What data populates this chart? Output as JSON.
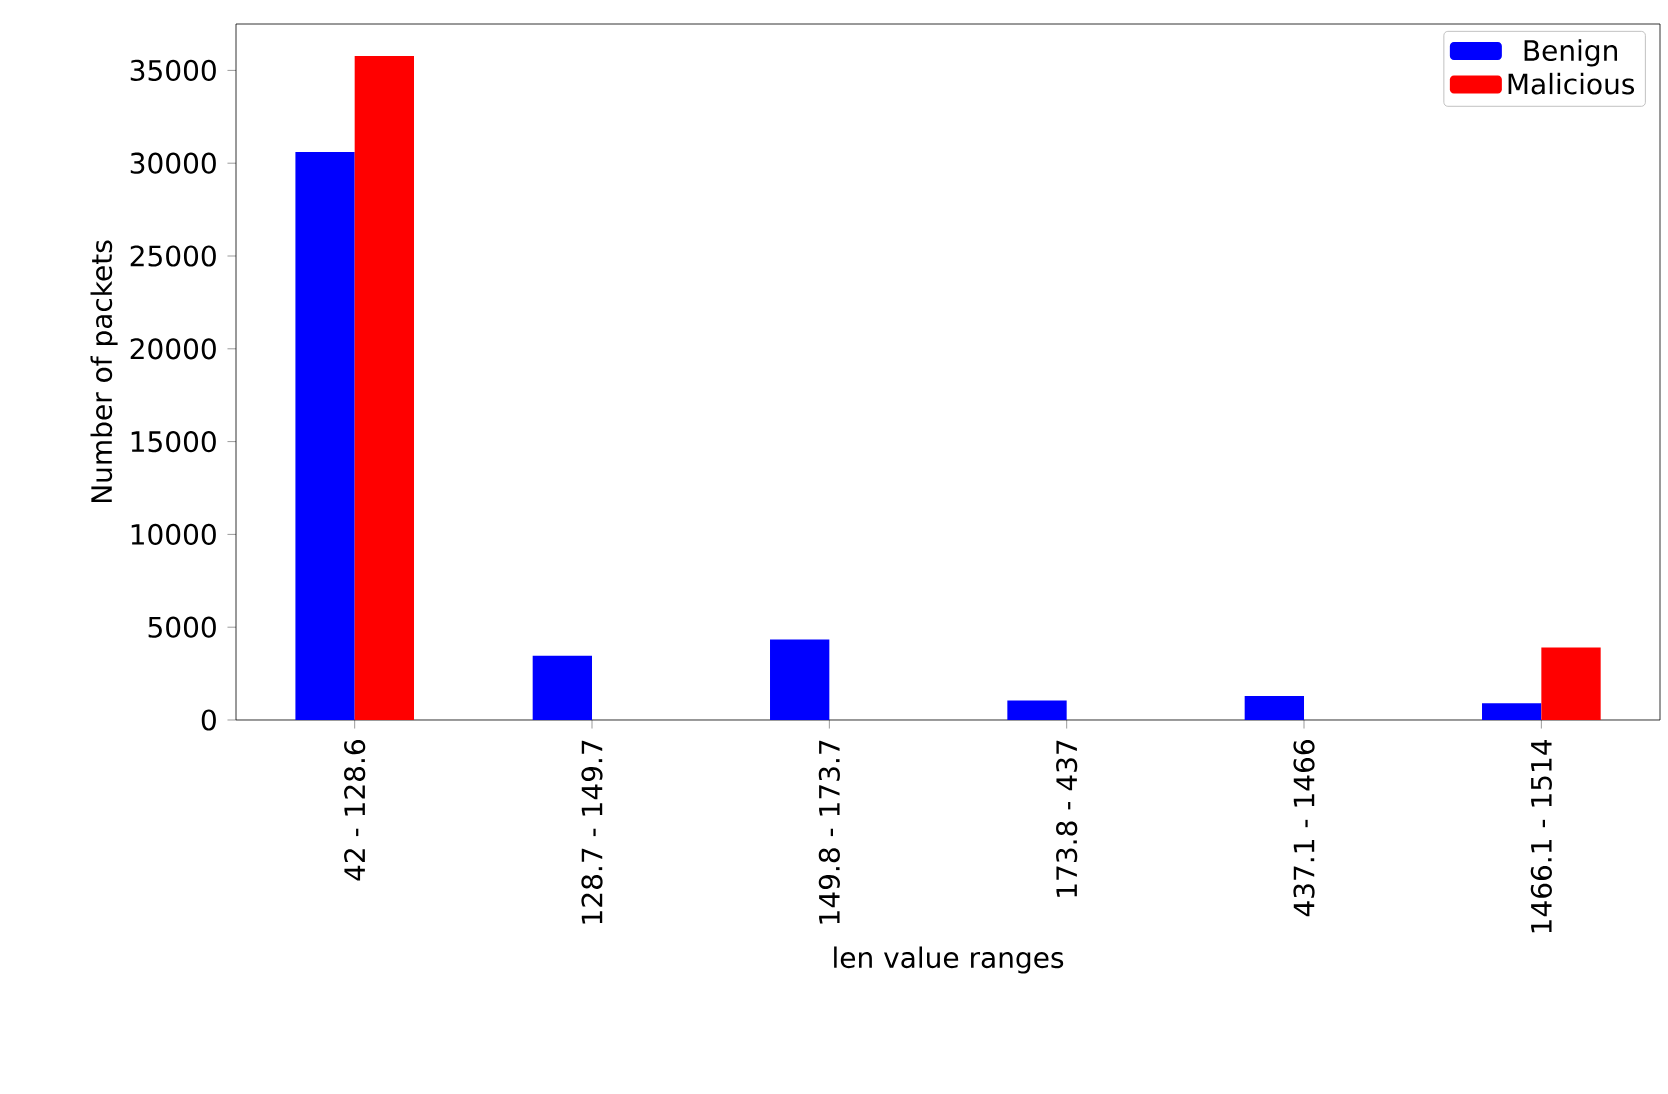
{
  "chart_data": {
    "type": "bar",
    "xlabel": "len value ranges",
    "ylabel": "Number of packets",
    "categories": [
      "42 - 128.6",
      "128.7 - 149.7",
      "149.8 - 173.7",
      "173.8 - 437",
      "437.1 - 1466",
      "1466.1 - 1514"
    ],
    "series": [
      {
        "name": "Benign",
        "color": "#0000ff",
        "values": [
          30600,
          3460,
          4340,
          1050,
          1300,
          900
        ]
      },
      {
        "name": "Malicious",
        "color": "#ff0000",
        "values": [
          35770,
          0,
          0,
          0,
          0,
          3900
        ]
      }
    ],
    "ylim": [
      0,
      37500
    ],
    "yticks": [
      0,
      5000,
      10000,
      15000,
      20000,
      25000,
      30000,
      35000
    ],
    "legend": "top right"
  }
}
